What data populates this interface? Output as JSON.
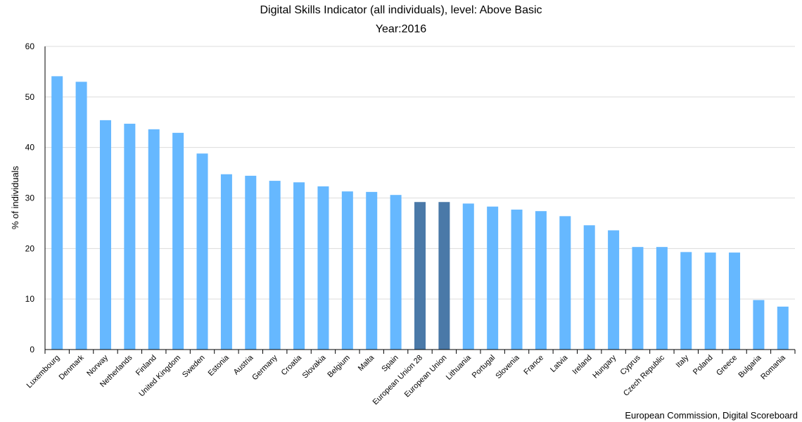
{
  "chart_data": {
    "type": "bar",
    "title": "Digital Skills Indicator (all individuals), level: Above Basic",
    "subtitle": "Year:2016",
    "xlabel": "",
    "ylabel": "% of individuals",
    "ylim": [
      0,
      60
    ],
    "yticks": [
      0,
      10,
      20,
      30,
      40,
      50,
      60
    ],
    "grid": true,
    "categories": [
      "Luxembourg",
      "Denmark",
      "Norway",
      "Netherlands",
      "Finland",
      "United Kingdom",
      "Sweden",
      "Estonia",
      "Austria",
      "Germany",
      "Croatia",
      "Slovakia",
      "Belgium",
      "Malta",
      "Spain",
      "European Union 28",
      "European Union",
      "Lithuania",
      "Portugal",
      "Slovenia",
      "France",
      "Latvia",
      "Ireland",
      "Hungary",
      "Cyprus",
      "Czech Republic",
      "Italy",
      "Poland",
      "Greece",
      "Bulgaria",
      "Romania"
    ],
    "values": [
      54.1,
      53.0,
      45.4,
      44.7,
      43.6,
      42.9,
      38.8,
      34.7,
      34.4,
      33.4,
      33.1,
      32.3,
      31.3,
      31.2,
      30.6,
      29.2,
      29.2,
      28.9,
      28.3,
      27.7,
      27.4,
      26.4,
      24.6,
      23.6,
      20.3,
      20.3,
      19.3,
      19.2,
      19.2,
      9.8,
      8.5
    ],
    "highlight": [
      "European Union 28",
      "European Union"
    ],
    "colors": {
      "bar": "#66b8ff",
      "highlight": "#4a79a8",
      "grid": "#dcdcdc",
      "axis": "#000000"
    }
  },
  "credit": "European Commission, Digital Scoreboard"
}
